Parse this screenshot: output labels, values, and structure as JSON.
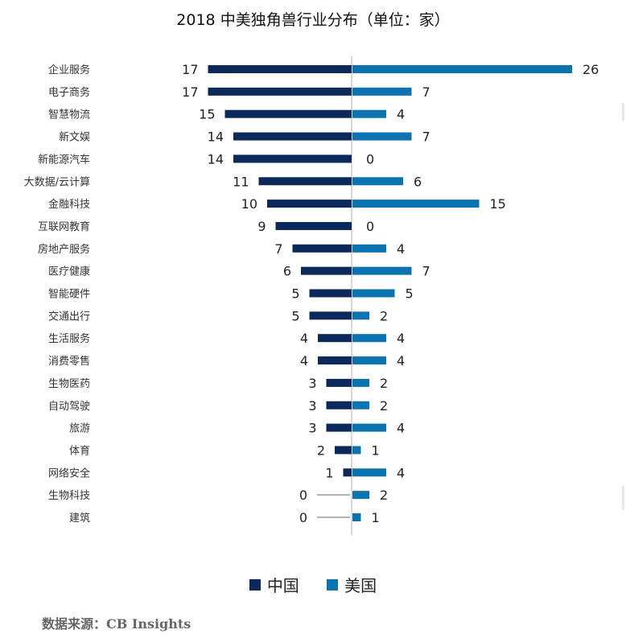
{
  "chart_data": {
    "type": "bar",
    "title": "2018 中美独角兽行业分布（单位：家）",
    "categories": [
      "企业服务",
      "电子商务",
      "智慧物流",
      "新文娱",
      "新能源汽车",
      "大数据/云计算",
      "金融科技",
      "互联网教育",
      "房地产服务",
      "医疗健康",
      "智能硬件",
      "交通出行",
      "生活服务",
      "消费零售",
      "生物医药",
      "自动驾驶",
      "旅游",
      "体育",
      "网络安全",
      "生物科技",
      "建筑"
    ],
    "series": [
      {
        "name": "中国",
        "color": "#0b2a5b",
        "values": [
          17,
          17,
          15,
          14,
          14,
          11,
          10,
          9,
          7,
          6,
          5,
          5,
          4,
          4,
          3,
          3,
          3,
          2,
          1,
          0,
          0
        ]
      },
      {
        "name": "美国",
        "color": "#0a73b0",
        "values": [
          26,
          7,
          4,
          7,
          0,
          6,
          15,
          0,
          4,
          7,
          5,
          2,
          4,
          4,
          2,
          2,
          4,
          1,
          4,
          2,
          1
        ]
      }
    ],
    "legend_position": "bottom",
    "grid": false
  },
  "legend": {
    "china": "中国",
    "usa": "美国"
  },
  "source": "数据来源：CB Insights"
}
